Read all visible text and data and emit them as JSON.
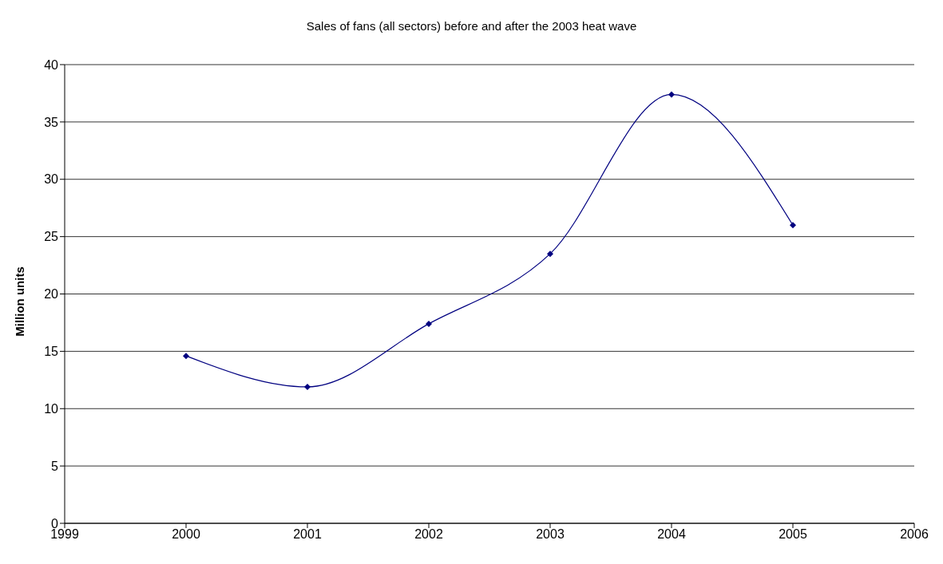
{
  "chart_data": {
    "type": "line",
    "title": "Sales of fans (all sectors) before and after the 2003 heat wave",
    "ylabel": "Million units",
    "x": [
      2000,
      2001,
      2002,
      2003,
      2004,
      2005
    ],
    "series": [
      {
        "color": "#000080",
        "values": [
          14.6,
          11.9,
          17.4,
          23.5,
          37.4,
          26.0
        ]
      }
    ],
    "xlim": [
      1999,
      2006
    ],
    "xticks": [
      1999,
      2000,
      2001,
      2002,
      2003,
      2004,
      2005,
      2006
    ],
    "ylim": [
      0,
      40
    ],
    "yticks": [
      0,
      5,
      10,
      15,
      20,
      25,
      30,
      35,
      40
    ],
    "grid": "y",
    "marker": "diamond",
    "line_style": "solid"
  }
}
